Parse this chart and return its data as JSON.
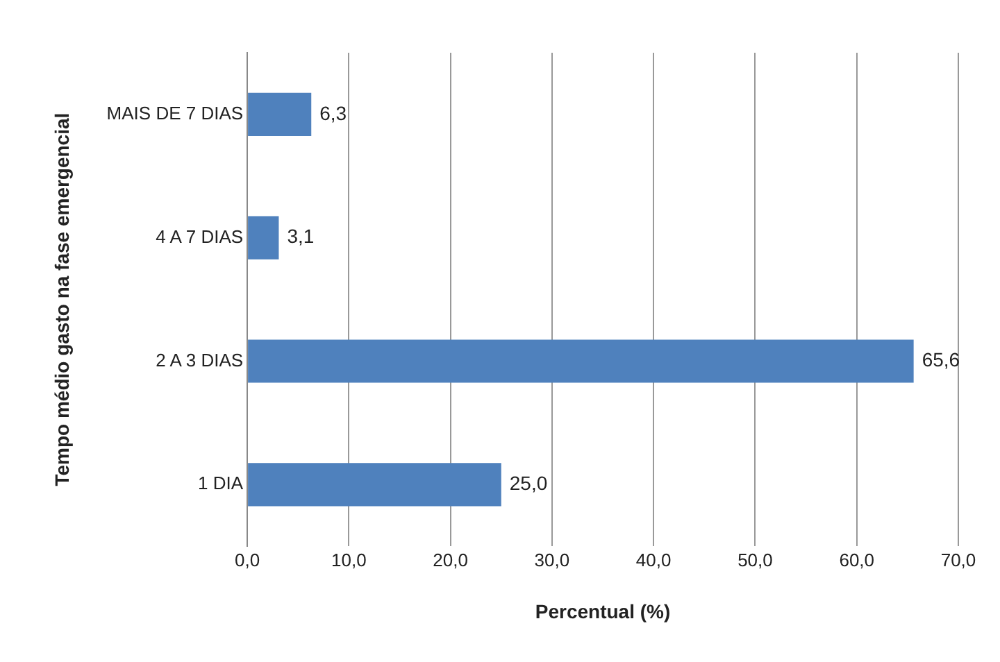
{
  "chart_data": {
    "type": "bar",
    "orientation": "horizontal",
    "categories": [
      "MAIS DE 7 DIAS",
      "4 A 7 DIAS",
      "2 A 3 DIAS",
      "1 DIA"
    ],
    "values": [
      6.3,
      3.1,
      65.6,
      25.0
    ],
    "color": "#4f81bd",
    "value_labels": [
      "6,3",
      "3,1",
      "65,6",
      "25,0"
    ],
    "xlabel": "Percentual (%)",
    "ylabel": "Tempo médio gasto na fase emergencial",
    "xlim": [
      0,
      70
    ],
    "xticks": [
      {
        "value": 0,
        "label": "0,0"
      },
      {
        "value": 10,
        "label": "10,0"
      },
      {
        "value": 20,
        "label": "20,0"
      },
      {
        "value": 30,
        "label": "30,0"
      },
      {
        "value": 40,
        "label": "40,0"
      },
      {
        "value": 50,
        "label": "50,0"
      },
      {
        "value": 60,
        "label": "60,0"
      },
      {
        "value": 70,
        "label": "70,0"
      }
    ],
    "grid": "x",
    "legend": false
  }
}
